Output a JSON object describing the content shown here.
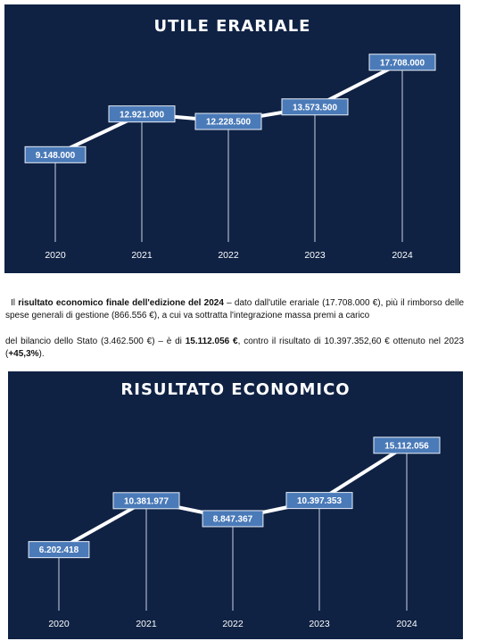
{
  "chart_data": [
    {
      "type": "line",
      "title": "UTILE ERARIALE",
      "categories": [
        "2020",
        "2021",
        "2022",
        "2023",
        "2024"
      ],
      "values": [
        9148000,
        12921000,
        12228500,
        13573500,
        17708000
      ],
      "value_labels": [
        "9.148.000",
        "12.921.000",
        "12.228.500",
        "13.573.500",
        "17.708.000"
      ],
      "xlabel": "",
      "ylabel": "",
      "ylim": [
        0,
        20000000
      ],
      "grid": false,
      "colors": {
        "background": "#0f2244",
        "line": "#ffffff",
        "label_box": "#4a7ab8"
      }
    },
    {
      "type": "line",
      "title": "RISULTATO ECONOMICO",
      "categories": [
        "2020",
        "2021",
        "2022",
        "2023",
        "2024"
      ],
      "values": [
        6202418,
        10381977,
        8847367,
        10397353,
        15112056
      ],
      "value_labels": [
        "6.202.418",
        "10.381.977",
        "8.847.367",
        "10.397.353",
        "15.112.056"
      ],
      "xlabel": "",
      "ylabel": "",
      "ylim": [
        0,
        17000000
      ],
      "grid": false,
      "colors": {
        "background": "#0f2244",
        "line": "#ffffff",
        "label_box": "#4a7ab8"
      }
    }
  ],
  "text": {
    "p1_a": "Il ",
    "p1_bold": "risultato economico finale dell'edizione del 2024",
    "p1_b": " – dato dall'utile erariale (17.708.000 €), più il rimborso delle spese generali di gestione (866.556 €), a cui va sottratta l'integrazione massa premi a carico",
    "p2_a": "del bilancio dello Stato (3.462.500 €) – è di ",
    "p2_bold1": "15.112.056 €",
    "p2_b": ", contro il risultato di 10.397.352,60 € ottenuto nel 2023 (",
    "p2_bold2": "+45,3%",
    "p2_c": ")."
  }
}
